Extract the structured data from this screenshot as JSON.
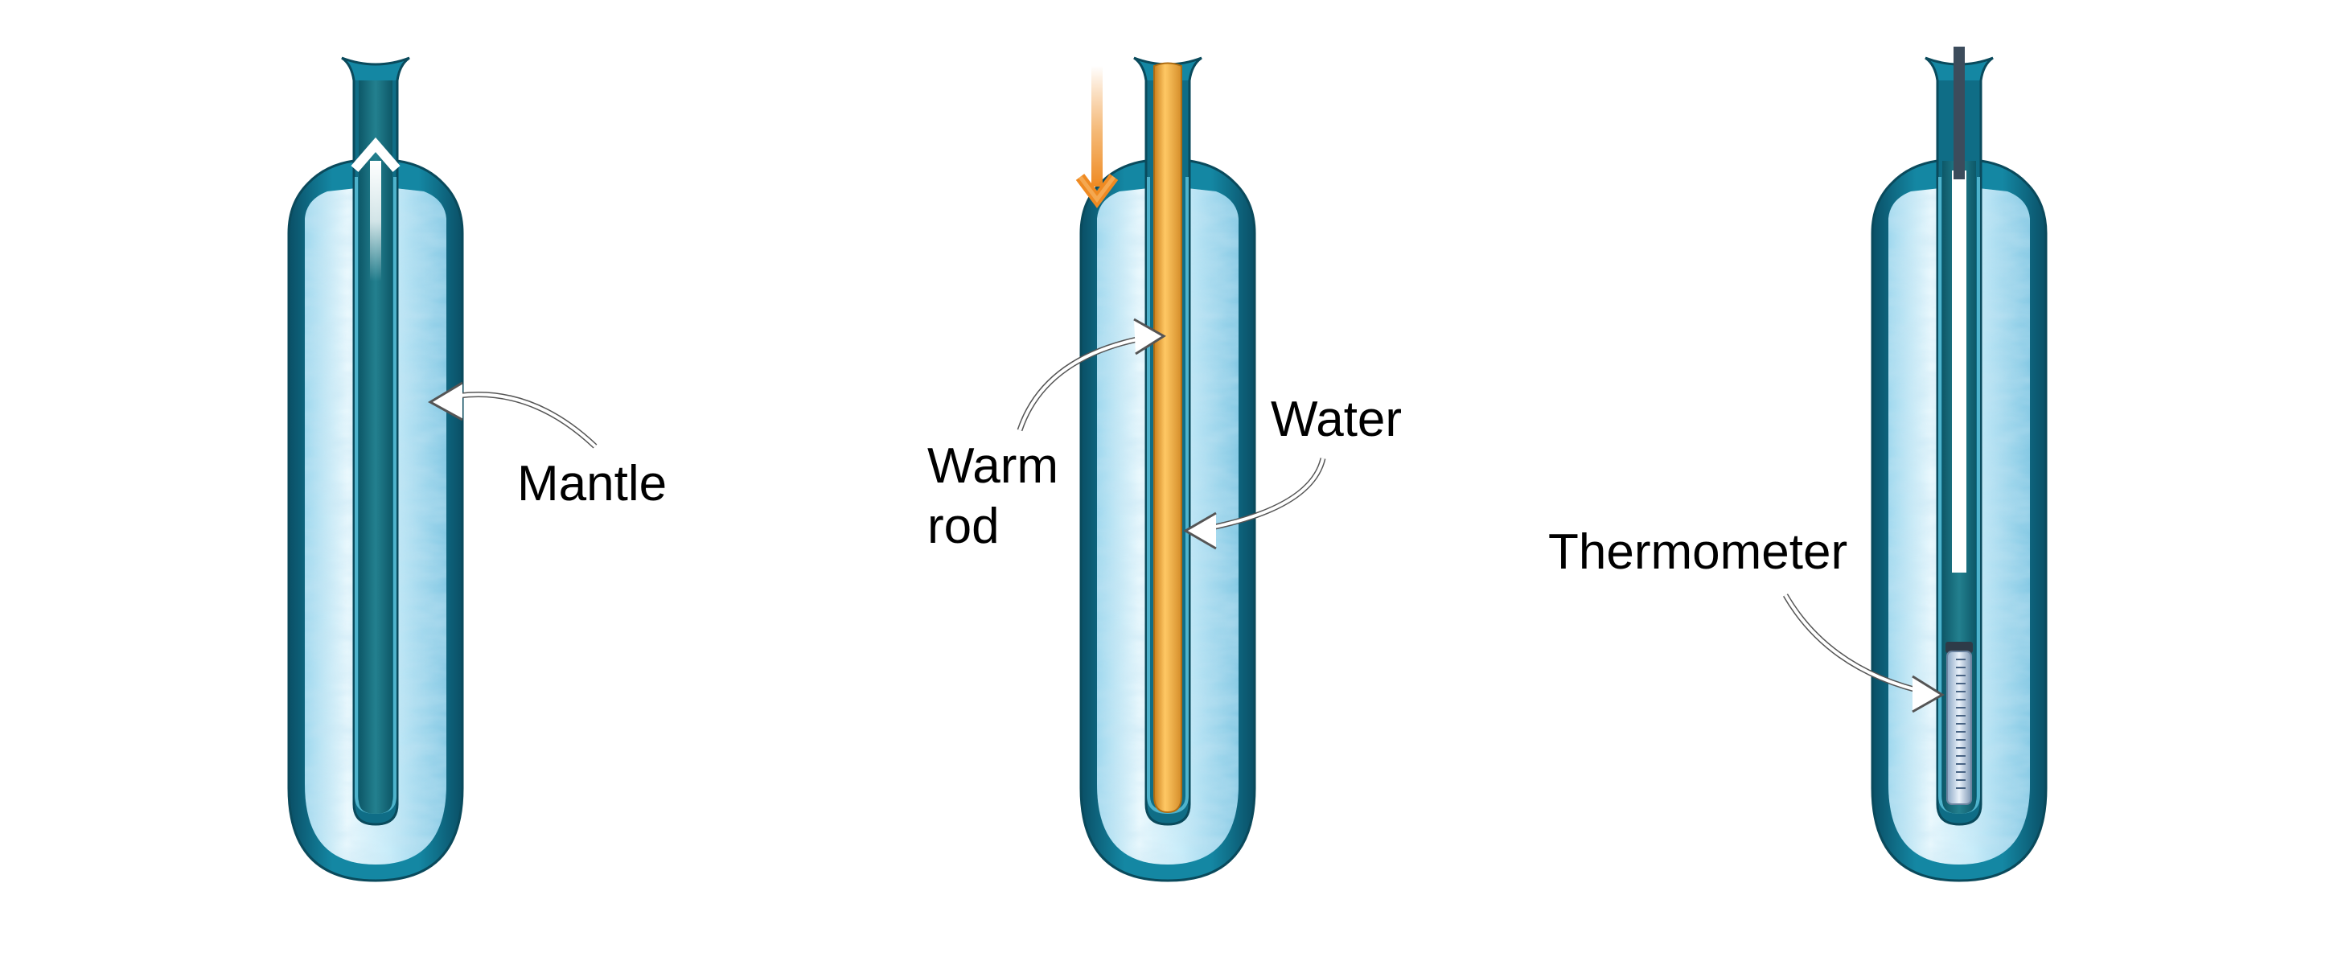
{
  "labels": {
    "mantle": "Mantle",
    "warm": "Warm",
    "rod": "rod",
    "water": "Water",
    "thermometer": "Thermometer"
  },
  "colors": {
    "background": "#ffffff",
    "tube_shell": "#0f6d86",
    "tube_inner": "#196f80",
    "ice": "#bfe9f8",
    "warm_rod": "#f2a83a",
    "orange_arrow": "#ef8a22",
    "thermometer_stem": "#3c4c5c",
    "callout_arrow": "#ffffff"
  },
  "icons": {
    "panel_1": [
      "ice-core-tube-icon",
      "up-arrow-icon",
      "callout-arrow-icon"
    ],
    "panel_2": [
      "ice-core-tube-icon",
      "warm-rod-icon",
      "down-arrow-icon",
      "callout-arrow-icon"
    ],
    "panel_3": [
      "ice-core-tube-icon",
      "thermometer-icon",
      "callout-arrow-icon"
    ]
  }
}
